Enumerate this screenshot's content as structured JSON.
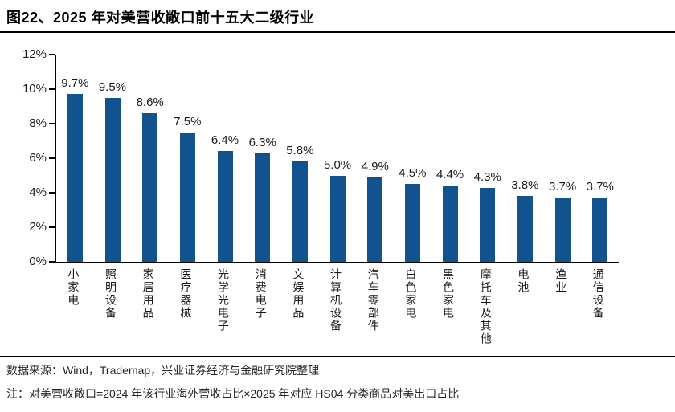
{
  "title": "图22、2025 年对美营收敞口前十五大二级行业",
  "footer": {
    "source": "数据来源：Wind，Trademap，兴业证券经济与金融研究院整理",
    "note": "注：对美营收敞口=2024 年该行业海外营收占比×2025 年对应 HS04 分类商品对美出口占比"
  },
  "colors": {
    "bar": "#12538F",
    "axis": "#000000",
    "text": "#1a1a1a"
  },
  "chart_data": {
    "type": "bar",
    "title": "2025 年对美营收敞口前十五大二级行业",
    "categories": [
      "小家电",
      "照明设备",
      "家居用品",
      "医疗器械",
      "光学光电子",
      "消费电子",
      "文娱用品",
      "计算机设备",
      "汽车零部件",
      "白色家电",
      "黑色家电",
      "摩托车及其他",
      "电池",
      "渔业",
      "通信设备"
    ],
    "values": [
      9.7,
      9.5,
      8.6,
      7.5,
      6.4,
      6.3,
      5.8,
      5.0,
      4.9,
      4.5,
      4.4,
      4.3,
      3.8,
      3.7,
      3.7
    ],
    "data_labels": [
      "9.7%",
      "9.5%",
      "8.6%",
      "7.5%",
      "6.4%",
      "6.3%",
      "5.8%",
      "5.0%",
      "4.9%",
      "4.5%",
      "4.4%",
      "4.3%",
      "3.8%",
      "3.7%",
      "3.7%"
    ],
    "y_ticks": [
      "12%",
      "10%",
      "8%",
      "6%",
      "4%",
      "2%",
      "0%"
    ],
    "ylim": [
      0,
      12
    ],
    "xlabel": "",
    "ylabel": "",
    "unit": "%",
    "grid": false,
    "legend": "none"
  }
}
